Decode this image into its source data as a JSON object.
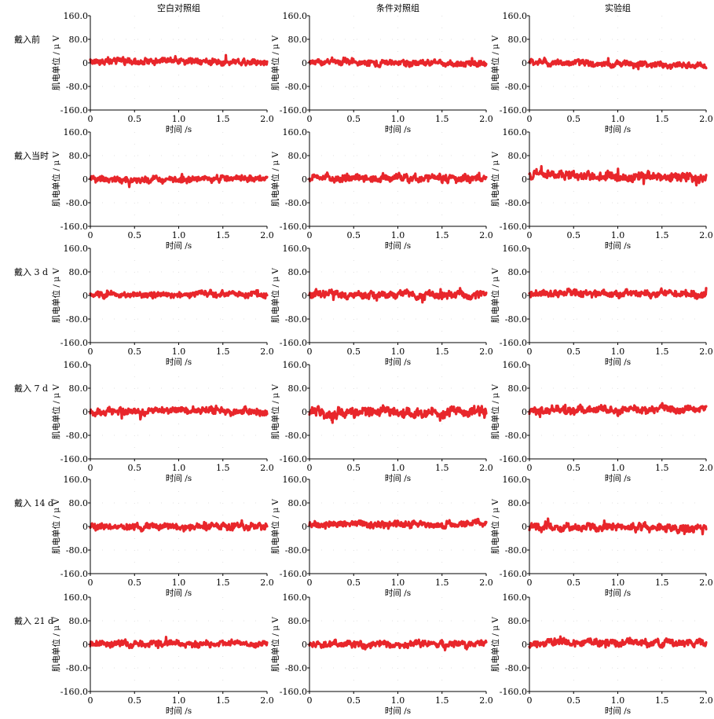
{
  "chart_data": {
    "type": "line",
    "layout": "grid",
    "column_titles": [
      "空白对照组",
      "条件对照组",
      "实验组"
    ],
    "row_labels": [
      "戴入前",
      "戴入当时",
      "戴入 3 d",
      "戴入 7 d",
      "戴入 14 d",
      "戴入 21 d"
    ],
    "xlabel": "时间 /s",
    "ylabel": "肌电单位 / μ V",
    "xlim": [
      0,
      2.0
    ],
    "ylim": [
      -160.0,
      160.0
    ],
    "x_ticks": [
      "0",
      "0.5",
      "1.0",
      "1.5",
      "2.0"
    ],
    "y_ticks": [
      "160.0",
      "80.0",
      "0",
      "-80.0",
      "-160.0"
    ],
    "series_color": "#e8262b",
    "grid": "faint dotted",
    "samples_per_trace": 400,
    "panels": [
      {
        "row": 0,
        "col": 0,
        "baseline_uV": [
          [
            0,
            6
          ],
          [
            1.0,
            6
          ],
          [
            2.0,
            4
          ]
        ],
        "amplitude_uV": 9
      },
      {
        "row": 0,
        "col": 1,
        "baseline_uV": [
          [
            0,
            3
          ],
          [
            1.0,
            0
          ],
          [
            2.0,
            -2
          ]
        ],
        "amplitude_uV": 9
      },
      {
        "row": 0,
        "col": 2,
        "baseline_uV": [
          [
            0,
            2
          ],
          [
            1.0,
            -4
          ],
          [
            2.0,
            -10
          ]
        ],
        "amplitude_uV": 9
      },
      {
        "row": 1,
        "col": 0,
        "baseline_uV": [
          [
            0,
            -4
          ],
          [
            1.0,
            -1
          ],
          [
            2.0,
            5
          ]
        ],
        "amplitude_uV": 9
      },
      {
        "row": 1,
        "col": 1,
        "baseline_uV": [
          [
            0,
            3
          ],
          [
            1.0,
            4
          ],
          [
            2.0,
            5
          ]
        ],
        "amplitude_uV": 11
      },
      {
        "row": 1,
        "col": 2,
        "baseline_uV": [
          [
            0,
            15
          ],
          [
            1.0,
            10
          ],
          [
            2.0,
            8
          ]
        ],
        "amplitude_uV": 13
      },
      {
        "row": 2,
        "col": 0,
        "baseline_uV": [
          [
            0,
            2
          ],
          [
            1.0,
            2
          ],
          [
            2.0,
            2
          ]
        ],
        "amplitude_uV": 9
      },
      {
        "row": 2,
        "col": 1,
        "baseline_uV": [
          [
            0,
            3
          ],
          [
            1.0,
            3
          ],
          [
            2.0,
            5
          ]
        ],
        "amplitude_uV": 11
      },
      {
        "row": 2,
        "col": 2,
        "baseline_uV": [
          [
            0,
            6
          ],
          [
            1.0,
            6
          ],
          [
            2.0,
            6
          ]
        ],
        "amplitude_uV": 10
      },
      {
        "row": 3,
        "col": 0,
        "baseline_uV": [
          [
            0,
            0
          ],
          [
            1.0,
            2
          ],
          [
            2.0,
            2
          ]
        ],
        "amplitude_uV": 10
      },
      {
        "row": 3,
        "col": 1,
        "baseline_uV": [
          [
            0,
            -6
          ],
          [
            1.0,
            -4
          ],
          [
            2.0,
            -3
          ]
        ],
        "amplitude_uV": 15
      },
      {
        "row": 3,
        "col": 2,
        "baseline_uV": [
          [
            0,
            2
          ],
          [
            1.0,
            6
          ],
          [
            2.0,
            10
          ]
        ],
        "amplitude_uV": 11
      },
      {
        "row": 4,
        "col": 0,
        "baseline_uV": [
          [
            0,
            2
          ],
          [
            1.0,
            -1
          ],
          [
            2.0,
            0
          ]
        ],
        "amplitude_uV": 10
      },
      {
        "row": 4,
        "col": 1,
        "baseline_uV": [
          [
            0,
            6
          ],
          [
            1.0,
            8
          ],
          [
            2.0,
            8
          ]
        ],
        "amplitude_uV": 10
      },
      {
        "row": 4,
        "col": 2,
        "baseline_uV": [
          [
            0,
            -2
          ],
          [
            1.0,
            -3
          ],
          [
            2.0,
            -8
          ]
        ],
        "amplitude_uV": 11
      },
      {
        "row": 5,
        "col": 0,
        "baseline_uV": [
          [
            0,
            0
          ],
          [
            1.0,
            2
          ],
          [
            2.0,
            3
          ]
        ],
        "amplitude_uV": 9
      },
      {
        "row": 5,
        "col": 1,
        "baseline_uV": [
          [
            0,
            0
          ],
          [
            1.0,
            0
          ],
          [
            2.0,
            2
          ]
        ],
        "amplitude_uV": 10
      },
      {
        "row": 5,
        "col": 2,
        "baseline_uV": [
          [
            0,
            2
          ],
          [
            0.35,
            10
          ],
          [
            1.0,
            6
          ],
          [
            2.0,
            6
          ]
        ],
        "amplitude_uV": 10
      }
    ]
  }
}
